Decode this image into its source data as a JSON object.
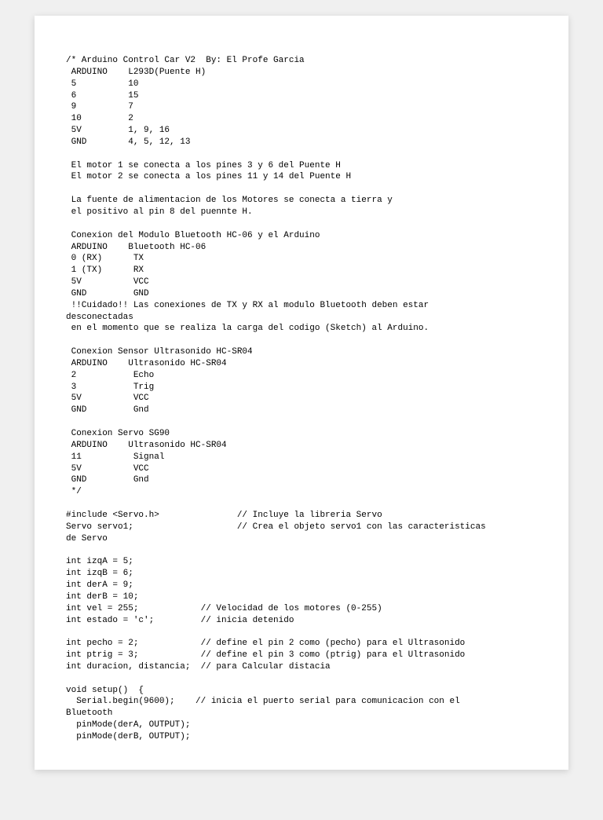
{
  "doc": {
    "font_family": "Courier New",
    "font_size_pt": 11,
    "text_color": "#000000",
    "background_color": "#ffffff",
    "page_shadow": "0 2px 8px rgba(0,0,0,0.15)",
    "lines": [
      "/* Arduino Control Car V2  By: El Profe Garcia",
      " ARDUINO    L293D(Puente H)",
      " 5          10",
      " 6          15",
      " 9          7",
      " 10         2",
      " 5V         1, 9, 16",
      " GND        4, 5, 12, 13",
      "",
      " El motor 1 se conecta a los pines 3 y 6 del Puente H",
      " El motor 2 se conecta a los pines 11 y 14 del Puente H",
      "",
      " La fuente de alimentacion de los Motores se conecta a tierra y",
      " el positivo al pin 8 del puennte H.",
      "",
      " Conexion del Modulo Bluetooth HC-06 y el Arduino",
      " ARDUINO    Bluetooth HC-06",
      " 0 (RX)      TX",
      " 1 (TX)      RX",
      " 5V          VCC",
      " GND         GND",
      " !!Cuidado!! Las conexiones de TX y RX al modulo Bluetooth deben estar",
      "desconectadas",
      " en el momento que se realiza la carga del codigo (Sketch) al Arduino.",
      "",
      " Conexion Sensor Ultrasonido HC-SR04",
      " ARDUINO    Ultrasonido HC-SR04",
      " 2           Echo",
      " 3           Trig",
      " 5V          VCC",
      " GND         Gnd",
      "",
      " Conexion Servo SG90",
      " ARDUINO    Ultrasonido HC-SR04",
      " 11          Signal",
      " 5V          VCC",
      " GND         Gnd",
      " */",
      "",
      "#include <Servo.h>               // Incluye la libreria Servo",
      "Servo servo1;                    // Crea el objeto servo1 con las caracteristicas",
      "de Servo",
      "",
      "int izqA = 5;",
      "int izqB = 6;",
      "int derA = 9;",
      "int derB = 10;",
      "int vel = 255;            // Velocidad de los motores (0-255)",
      "int estado = 'c';         // inicia detenido",
      "",
      "int pecho = 2;            // define el pin 2 como (pecho) para el Ultrasonido",
      "int ptrig = 3;            // define el pin 3 como (ptrig) para el Ultrasonido",
      "int duracion, distancia;  // para Calcular distacia",
      "",
      "void setup()  {",
      "  Serial.begin(9600);    // inicia el puerto serial para comunicacion con el",
      "Bluetooth",
      "  pinMode(derA, OUTPUT);",
      "  pinMode(derB, OUTPUT);"
    ]
  }
}
